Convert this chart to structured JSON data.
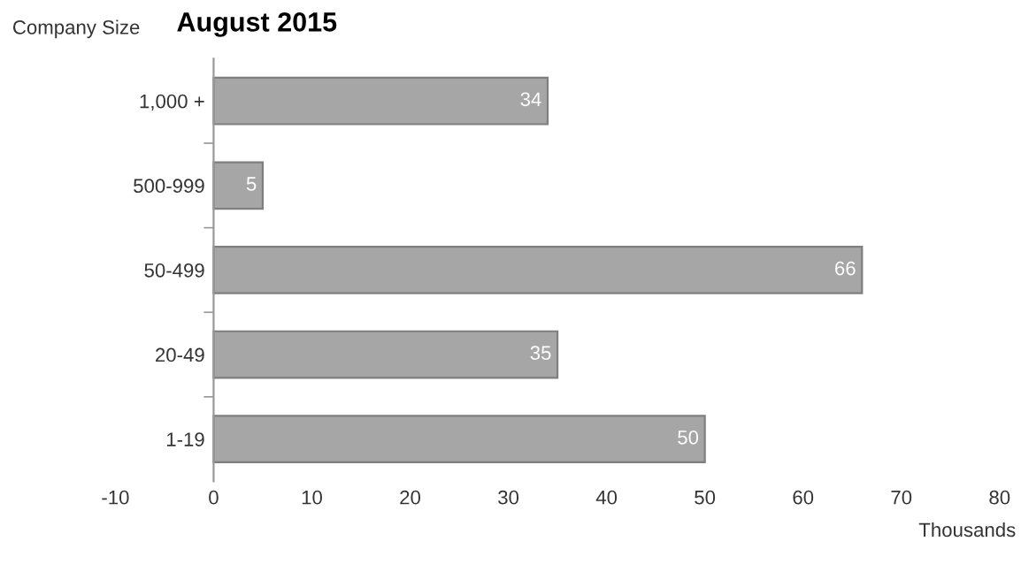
{
  "chart_data": {
    "type": "bar",
    "orientation": "horizontal",
    "title": "August 2015",
    "ylabel": "Company Size",
    "xlabel": "Thousands",
    "categories": [
      "1,000 +",
      "500-999",
      "50-499",
      "20-49",
      "1-19"
    ],
    "values": [
      34,
      5,
      66,
      35,
      50
    ],
    "color": "#a6a6a6",
    "data_labels": true,
    "xlim": [
      -10,
      80
    ],
    "xticks": [
      -10,
      0,
      10,
      20,
      30,
      40,
      50,
      60,
      70,
      80
    ],
    "grid": false
  }
}
